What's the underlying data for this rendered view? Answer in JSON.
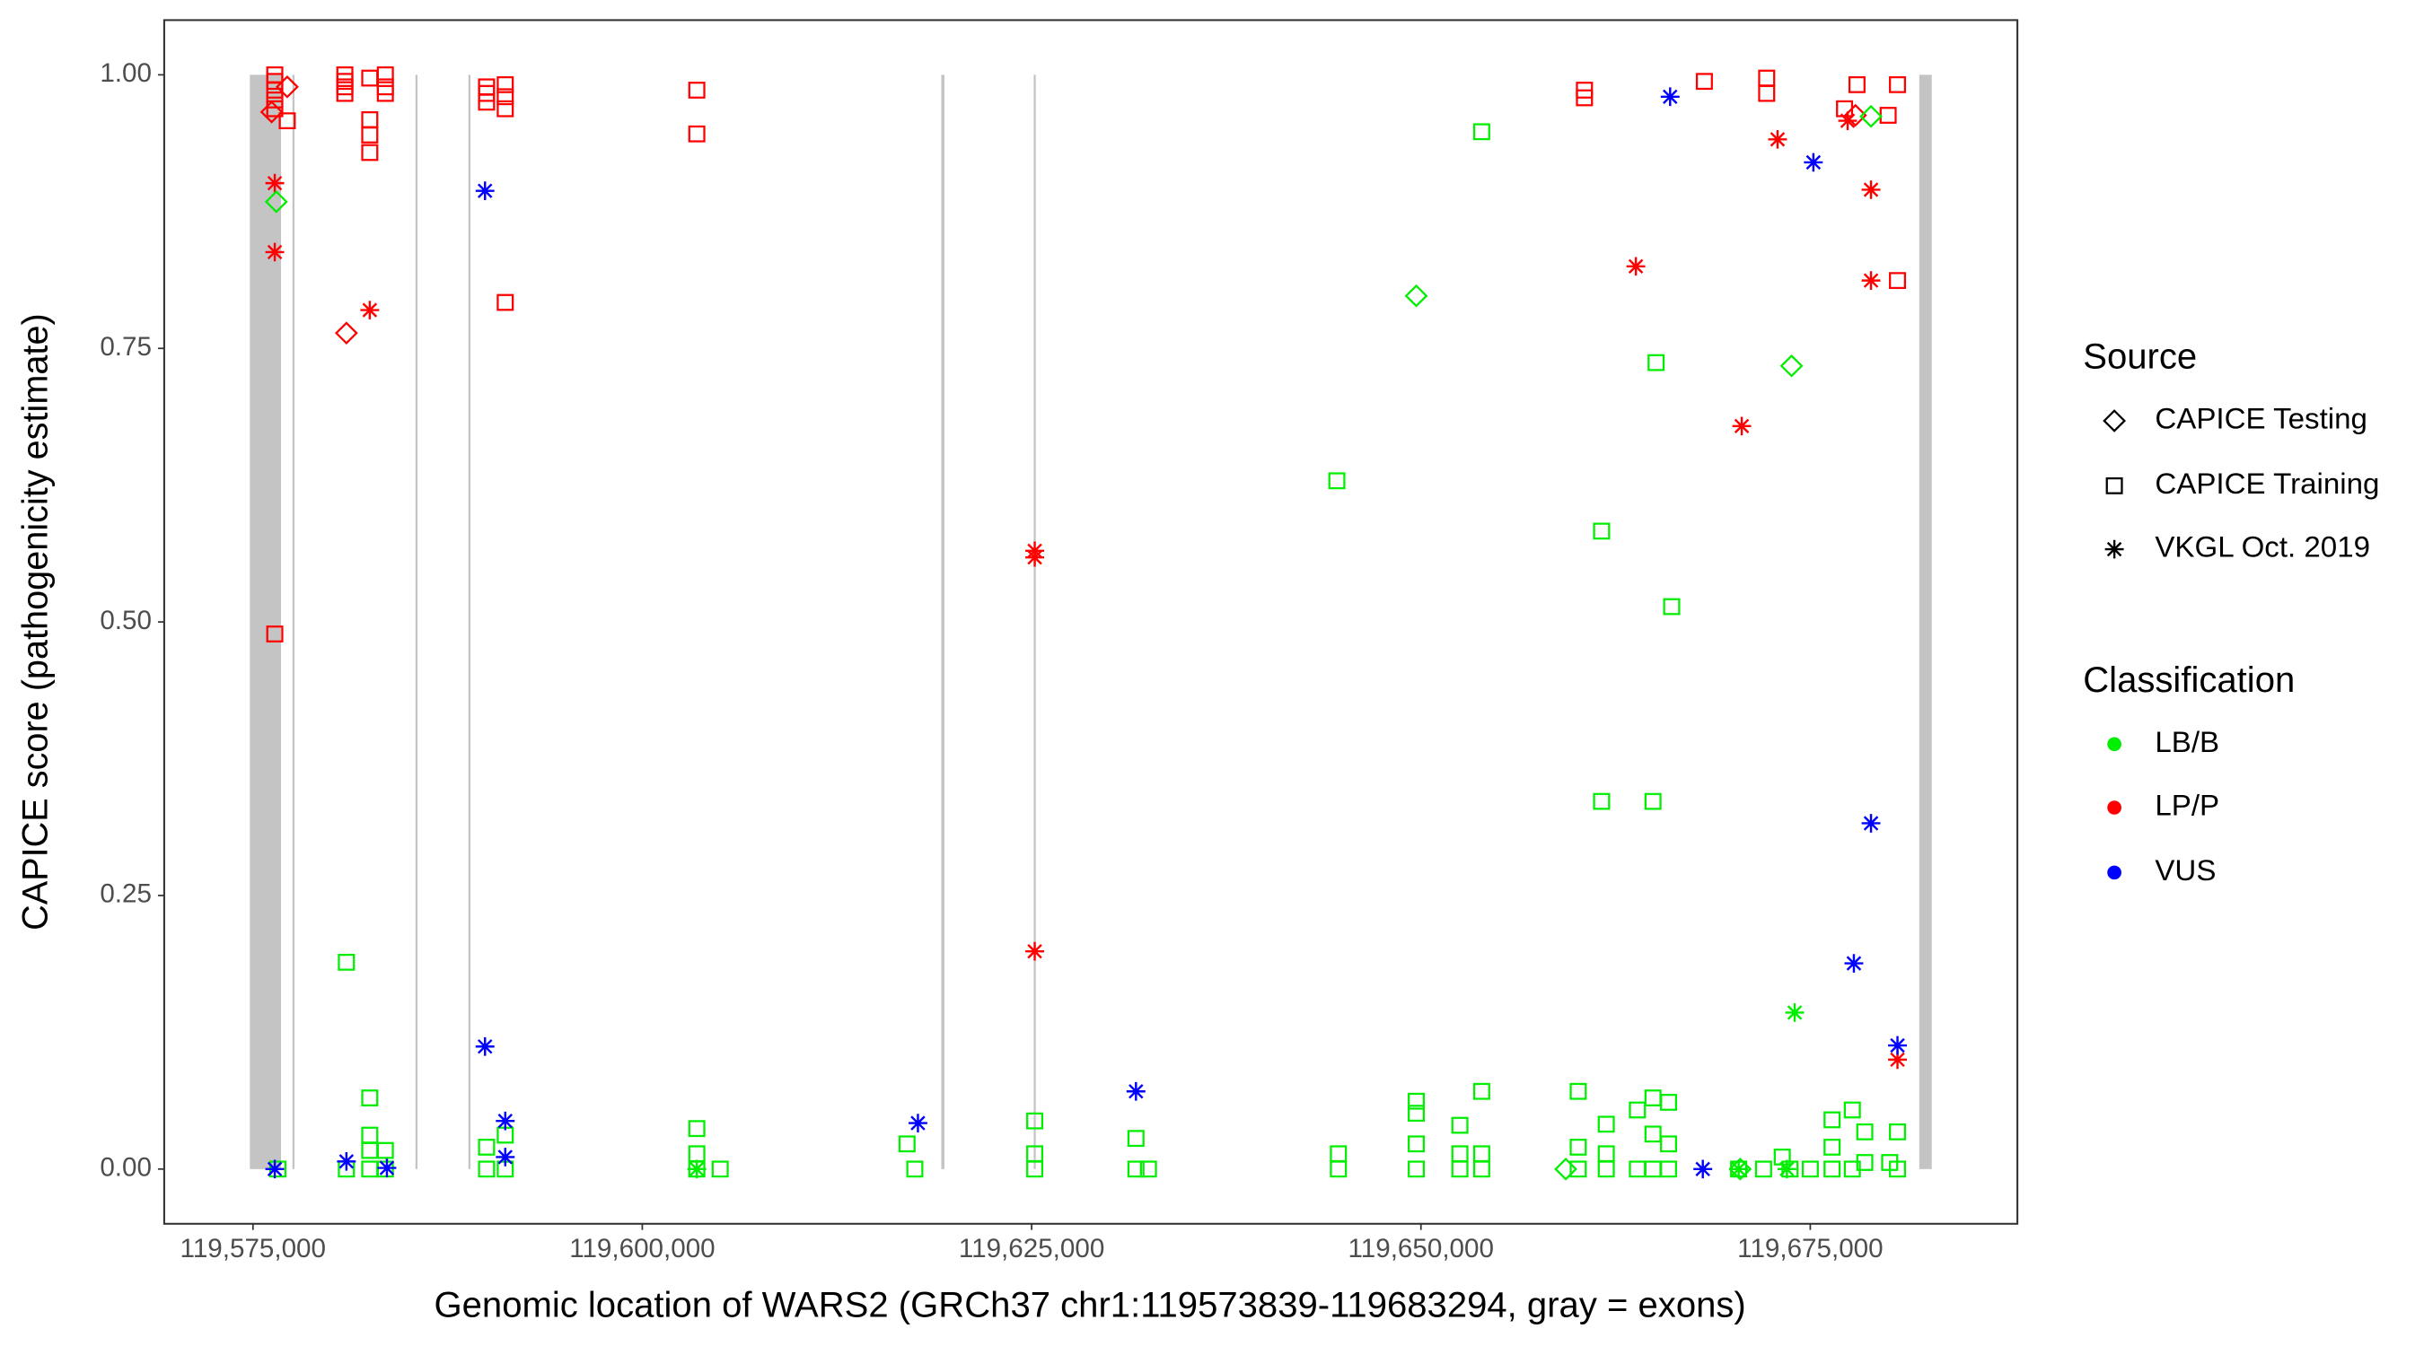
{
  "chart_data": {
    "type": "scatter",
    "x_label": "Genomic location of WARS2 (GRCh37 chr1:119573839-119683294, gray = exons)",
    "y_label": "CAPICE score (pathogenicity estimate)",
    "xlim": [
      119569300,
      119688300
    ],
    "ylim": [
      -0.05,
      1.05
    ],
    "xticks": [
      {
        "value": 119575000,
        "label": "119,575,000"
      },
      {
        "value": 119600000,
        "label": "119,600,000"
      },
      {
        "value": 119625000,
        "label": "119,625,000"
      },
      {
        "value": 119650000,
        "label": "119,650,000"
      },
      {
        "value": 119675000,
        "label": "119,675,000"
      }
    ],
    "yticks": [
      {
        "value": 0,
        "label": "0.00"
      },
      {
        "value": 0.25,
        "label": "0.25"
      },
      {
        "value": 0.5,
        "label": "0.50"
      },
      {
        "value": 0.75,
        "label": "0.75"
      },
      {
        "value": 1,
        "label": "1.00"
      }
    ],
    "grid": false,
    "exon_color": "#c4c4c4",
    "exons": [
      [
        119574800,
        119576800
      ],
      [
        119577550,
        119577650
      ],
      [
        119585450,
        119585550
      ],
      [
        119588850,
        119588950
      ],
      [
        119619200,
        119619400
      ],
      [
        119625150,
        119625250
      ],
      [
        119682000,
        119682800
      ]
    ],
    "legend": {
      "position": "right",
      "source": {
        "title": "Source",
        "items": [
          {
            "label": "CAPICE Testing",
            "shape": "diamond"
          },
          {
            "label": "CAPICE Training",
            "shape": "square"
          },
          {
            "label": "VKGL Oct. 2019",
            "shape": "asterisk"
          }
        ]
      },
      "classification": {
        "title": "Classification",
        "items": [
          {
            "label": "LB/B",
            "color": "#00ee00"
          },
          {
            "label": "LP/P",
            "color": "#ff0000"
          },
          {
            "label": "VUS",
            "color": "#0000ff"
          }
        ]
      }
    },
    "series": [
      {
        "shape": "square",
        "color": "#ff0000",
        "x": [
          119576400,
          119576400,
          119576400,
          119576400,
          119576400,
          119576400,
          119577200,
          119580900,
          119580900,
          119580900,
          119580900,
          119582500,
          119582500,
          119582500,
          119582500,
          119583500,
          119583500,
          119583500,
          119590000,
          119590000,
          119590000,
          119591200,
          119591200,
          119591200,
          119591200,
          119603500,
          119603500,
          119660500,
          119660500,
          119668200,
          119672200,
          119672200,
          119677200,
          119678000,
          119680000,
          119680600,
          119680600
        ],
        "y": [
          1.0,
          0.994,
          0.986,
          0.977,
          0.969,
          0.489,
          0.958,
          1.0,
          0.994,
          0.989,
          0.983,
          0.997,
          0.959,
          0.945,
          0.929,
          1.0,
          0.989,
          0.983,
          0.989,
          0.983,
          0.975,
          0.991,
          0.98,
          0.969,
          0.792,
          0.986,
          0.946,
          0.986,
          0.979,
          0.994,
          0.997,
          0.983,
          0.969,
          0.991,
          0.963,
          0.991,
          0.812
        ]
      },
      {
        "shape": "diamond",
        "color": "#ff0000",
        "x": [
          119576200,
          119577200,
          119581000,
          119677900
        ],
        "y": [
          0.966,
          0.989,
          0.764,
          0.963
        ]
      },
      {
        "shape": "asterisk",
        "color": "#ff0000",
        "x": [
          119576400,
          119576400,
          119582500,
          119625200,
          119625200,
          119625200,
          119663800,
          119670600,
          119672900,
          119677400,
          119678900,
          119678900,
          119680600
        ],
        "y": [
          0.901,
          0.838,
          0.785,
          0.565,
          0.559,
          0.199,
          0.825,
          0.679,
          0.941,
          0.958,
          0.895,
          0.812,
          0.1
        ]
      },
      {
        "shape": "square",
        "color": "#00ee00",
        "x": [
          119581000,
          119644600,
          119653900,
          119661600,
          119665100,
          119666100,
          119661600,
          119664900,
          119576600,
          119581000,
          119582500,
          119582500,
          119582500,
          119582500,
          119583500,
          119583500,
          119590000,
          119590000,
          119591200,
          119591200,
          119603500,
          119603500,
          119603500,
          119605000,
          119617000,
          119617500,
          119625200,
          119625200,
          119625200,
          119631700,
          119631700,
          119632500,
          119644700,
          119644700,
          119649700,
          119649700,
          119649700,
          119649700,
          119652500,
          119652500,
          119652500,
          119653900,
          119653900,
          119653900,
          119660100,
          119660100,
          119660100,
          119661900,
          119661900,
          119661900,
          119663900,
          119663900,
          119664900,
          119664900,
          119664900,
          119665900,
          119665900,
          119665900,
          119670400,
          119672000,
          119673200,
          119673700,
          119675000,
          119676400,
          119676400,
          119676400,
          119677700,
          119677700,
          119678500,
          119678500,
          119680100,
          119680600,
          119680600
        ],
        "y": [
          0.189,
          0.629,
          0.948,
          0.583,
          0.737,
          0.514,
          0.336,
          0.336,
          0,
          0,
          0.065,
          0.031,
          0.017,
          0,
          0.017,
          0,
          0.02,
          0,
          0.031,
          0,
          0.037,
          0.014,
          0,
          0,
          0.023,
          0,
          0.044,
          0.014,
          0,
          0.028,
          0,
          0,
          0.014,
          0,
          0.062,
          0.051,
          0.023,
          0,
          0.04,
          0.014,
          0,
          0.071,
          0.014,
          0,
          0.071,
          0.02,
          0,
          0.041,
          0.014,
          0,
          0.054,
          0,
          0.065,
          0.032,
          0,
          0.061,
          0.023,
          0,
          0,
          0,
          0.011,
          0,
          0,
          0.045,
          0.02,
          0,
          0.054,
          0,
          0.034,
          0.006,
          0.006,
          0.034,
          0
        ]
      },
      {
        "shape": "diamond",
        "color": "#00ee00",
        "x": [
          119576500,
          119649700,
          119673800,
          119678900,
          119659300,
          119670500
        ],
        "y": [
          0.884,
          0.798,
          0.734,
          0.962,
          0,
          0
        ]
      },
      {
        "shape": "asterisk",
        "color": "#00ee00",
        "x": [
          119674000,
          119603500,
          119670400,
          119673500
        ],
        "y": [
          0.143,
          0,
          0,
          0
        ]
      },
      {
        "shape": "asterisk",
        "color": "#0000ff",
        "x": [
          119576400,
          119581000,
          119583600,
          119589900,
          119589900,
          119591200,
          119591200,
          119617700,
          119631700,
          119666000,
          119668100,
          119675200,
          119677800,
          119678900,
          119680600
        ],
        "y": [
          0,
          0.007,
          0.001,
          0.894,
          0.112,
          0.044,
          0.011,
          0.042,
          0.071,
          0.98,
          0,
          0.92,
          0.188,
          0.316,
          0.113
        ]
      }
    ]
  }
}
